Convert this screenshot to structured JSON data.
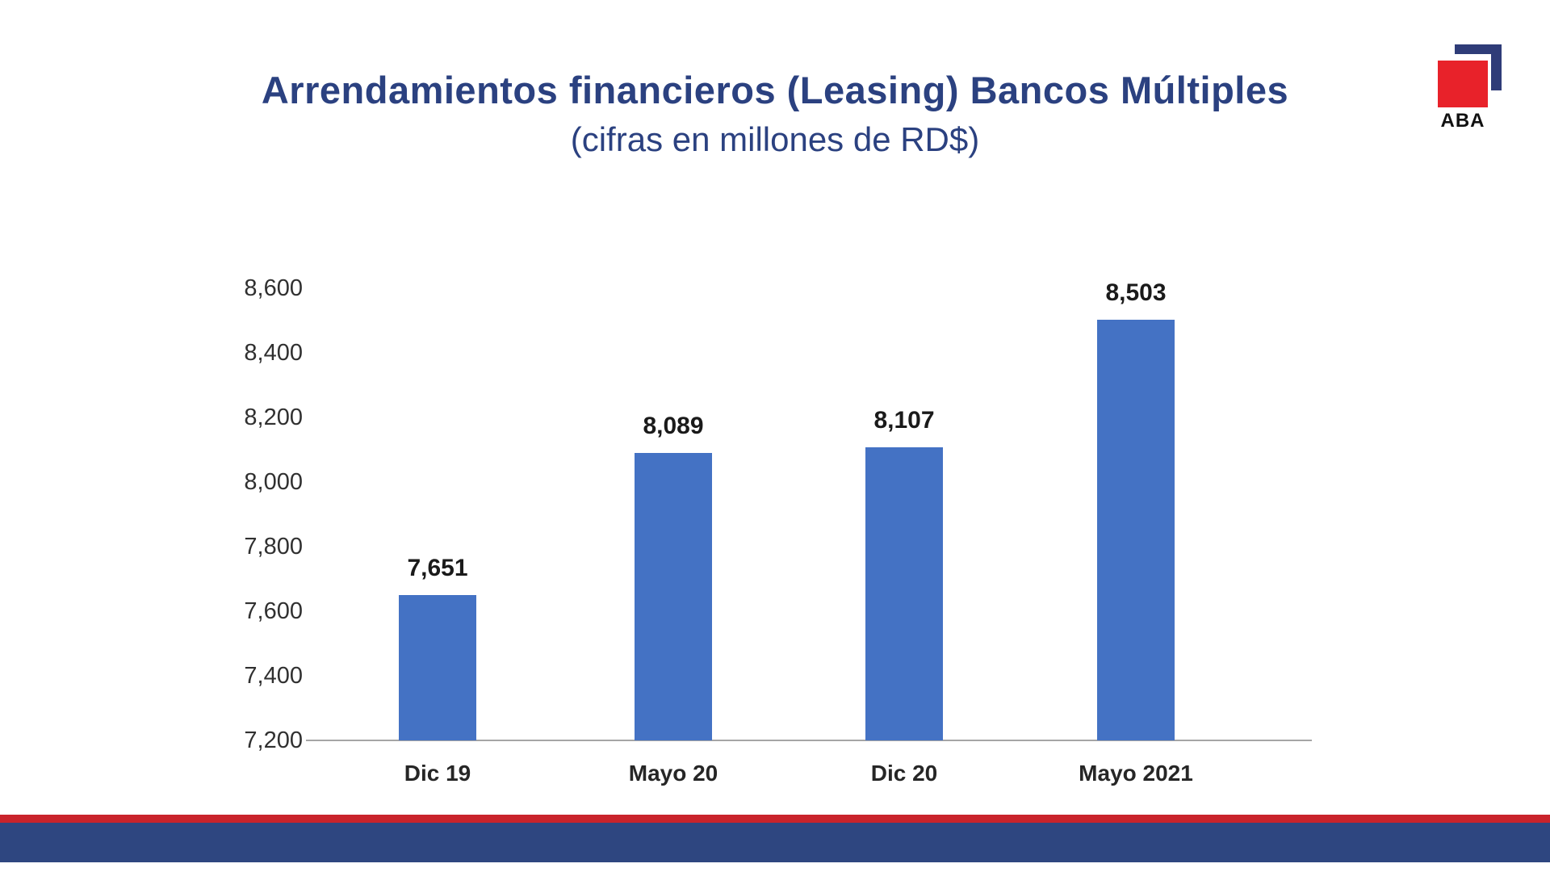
{
  "slide": {
    "title": "Arrendamientos financieros (Leasing) Bancos Múltiples",
    "subtitle": "(cifras en millones de RD$)"
  },
  "logo": {
    "text": "ABA",
    "red": "#E8222A",
    "blue": "#2F3C78"
  },
  "colors": {
    "title_text": "#2B4180",
    "bar": "#4472C4",
    "axis_line": "#A6A6A6",
    "footer_red_stripe": "#C9232B",
    "footer_blue_bar": "#2E4680"
  },
  "chart_data": {
    "type": "bar",
    "title": "Arrendamientos financieros (Leasing) Bancos Múltiples",
    "subtitle": "(cifras en millones de RD$)",
    "categories": [
      "Dic 19",
      "Mayo 20",
      "Dic 20",
      "Mayo 2021"
    ],
    "values": [
      7651,
      8089,
      8107,
      8503
    ],
    "value_labels": [
      "7,651",
      "8,089",
      "8,107",
      "8,503"
    ],
    "ylim": [
      7200,
      8600
    ],
    "ytick_step": 200,
    "ytick_labels": [
      "7,200",
      "7,400",
      "7,600",
      "7,800",
      "8,000",
      "8,200",
      "8,400",
      "8,600"
    ],
    "grid": false,
    "legend": false,
    "bar_color": "#4472C4",
    "xlabel": "",
    "ylabel": ""
  }
}
